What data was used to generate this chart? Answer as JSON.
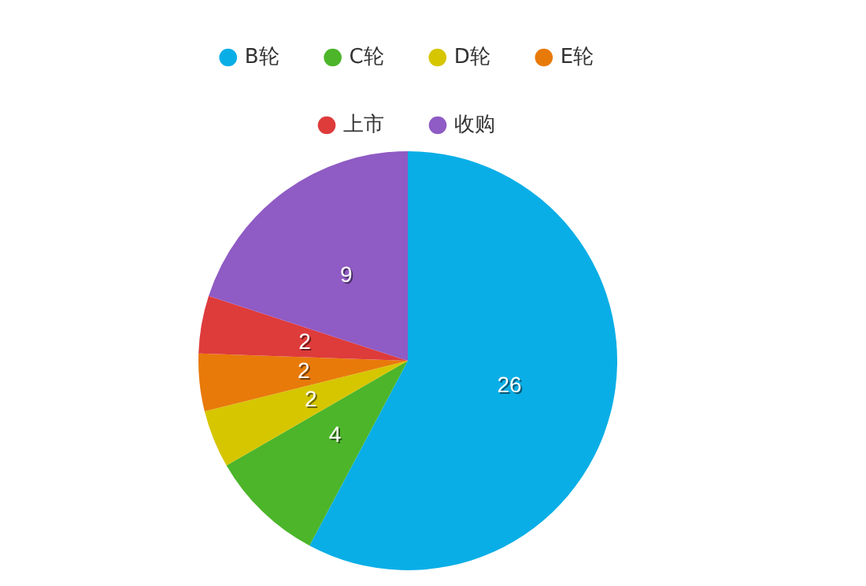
{
  "chart_data": {
    "type": "pie",
    "categories": [
      "B轮",
      "C轮",
      "D轮",
      "E轮",
      "上市",
      "收购"
    ],
    "values": [
      26,
      4,
      2,
      2,
      2,
      9
    ],
    "colors": [
      "#0aaee6",
      "#4cb52a",
      "#d6c600",
      "#e87a0a",
      "#de3b3b",
      "#8f5bc4"
    ],
    "data_labels": true,
    "legend": "top"
  }
}
